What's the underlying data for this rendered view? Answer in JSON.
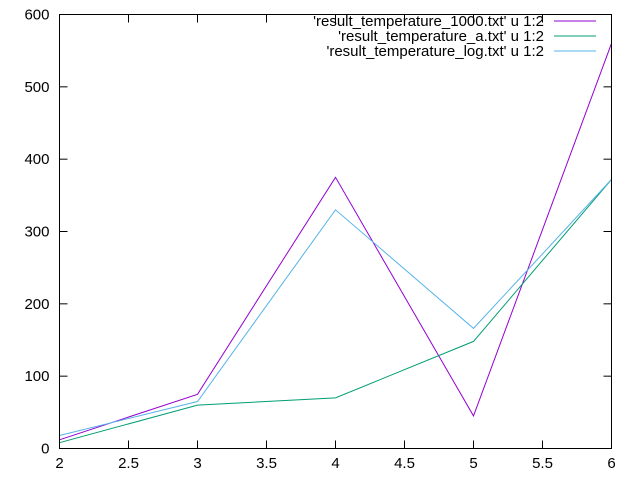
{
  "chart_data": {
    "type": "line",
    "title": "",
    "xlabel": "",
    "ylabel": "",
    "xlim": [
      2,
      6
    ],
    "ylim": [
      0,
      600
    ],
    "xticks": [
      2,
      2.5,
      3,
      3.5,
      4,
      4.5,
      5,
      5.5,
      6
    ],
    "xtick_labels": [
      "2",
      "2.5",
      "3",
      "3.5",
      "4",
      "4.5",
      "5",
      "5.5",
      "6"
    ],
    "yticks": [
      0,
      100,
      200,
      300,
      400,
      500,
      600
    ],
    "ytick_labels": [
      "0",
      "100",
      "200",
      "300",
      "400",
      "500",
      "600"
    ],
    "grid": false,
    "legend_position": "top-right",
    "x": [
      2,
      3,
      4,
      5,
      6
    ],
    "series": [
      {
        "name": "'result_temperature_1000.txt' u 1:2",
        "color": "#9400d3",
        "values": [
          12,
          75,
          375,
          45,
          560
        ]
      },
      {
        "name": "'result_temperature_a.txt' u 1:2",
        "color": "#009e73",
        "values": [
          8,
          60,
          70,
          148,
          372
        ]
      },
      {
        "name": "'result_temperature_log.txt' u 1:2",
        "color": "#56b4e9",
        "values": [
          18,
          65,
          330,
          166,
          372
        ]
      }
    ]
  }
}
